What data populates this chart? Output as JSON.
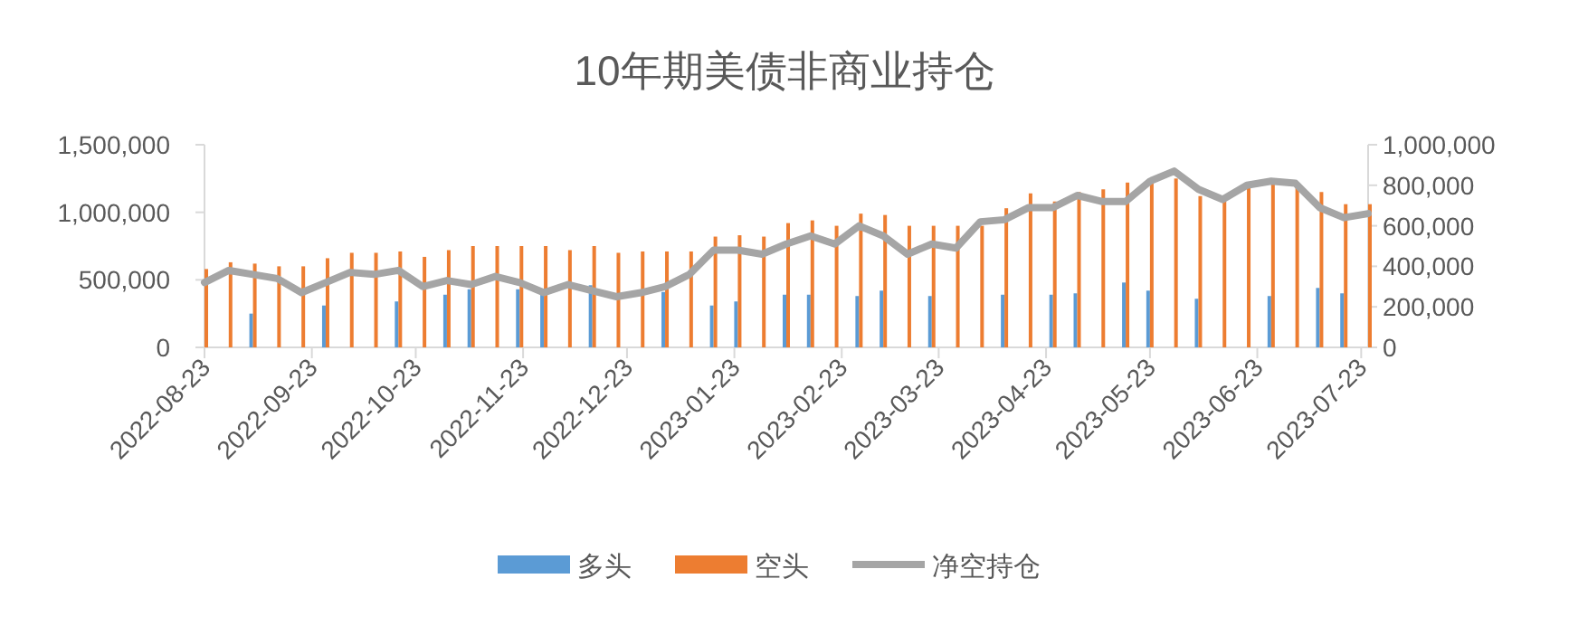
{
  "chart_data": {
    "type": "bar",
    "title": "10年期美债非商业持仓",
    "x": [
      "2022-08-23",
      "2022-08-30",
      "2022-09-06",
      "2022-09-13",
      "2022-09-20",
      "2022-09-27",
      "2022-10-04",
      "2022-10-11",
      "2022-10-18",
      "2022-10-25",
      "2022-11-01",
      "2022-11-08",
      "2022-11-15",
      "2022-11-22",
      "2022-11-29",
      "2022-12-06",
      "2022-12-13",
      "2022-12-20",
      "2022-12-27",
      "2023-01-03",
      "2023-01-10",
      "2023-01-17",
      "2023-01-24",
      "2023-01-31",
      "2023-02-07",
      "2023-02-14",
      "2023-02-21",
      "2023-02-28",
      "2023-03-07",
      "2023-03-14",
      "2023-03-21",
      "2023-03-28",
      "2023-04-04",
      "2023-04-11",
      "2023-04-18",
      "2023-04-25",
      "2023-05-02",
      "2023-05-09",
      "2023-05-16",
      "2023-05-23",
      "2023-05-30",
      "2023-06-06",
      "2023-06-13",
      "2023-06-20",
      "2023-06-27",
      "2023-07-04",
      "2023-07-11",
      "2023-07-18",
      "2023-07-25"
    ],
    "series": [
      {
        "name": "多头",
        "color": "#5b9bd5",
        "values": [
          null,
          null,
          250000,
          null,
          null,
          310000,
          null,
          null,
          340000,
          null,
          390000,
          430000,
          null,
          430000,
          430000,
          null,
          460000,
          null,
          null,
          410000,
          null,
          310000,
          340000,
          null,
          390000,
          390000,
          null,
          380000,
          420000,
          null,
          380000,
          null,
          null,
          390000,
          null,
          390000,
          400000,
          null,
          480000,
          420000,
          null,
          360000,
          null,
          null,
          380000,
          null,
          440000,
          400000,
          null
        ]
      },
      {
        "name": "空头",
        "color": "#ed7d31",
        "values": [
          580000,
          630000,
          620000,
          600000,
          600000,
          660000,
          700000,
          700000,
          710000,
          670000,
          720000,
          750000,
          750000,
          750000,
          750000,
          720000,
          750000,
          700000,
          710000,
          710000,
          710000,
          820000,
          830000,
          820000,
          920000,
          940000,
          900000,
          990000,
          980000,
          900000,
          900000,
          900000,
          900000,
          1030000,
          1140000,
          1080000,
          1150000,
          1170000,
          1220000,
          1220000,
          1250000,
          1120000,
          1080000,
          1190000,
          1220000,
          1190000,
          1150000,
          1060000,
          1060000
        ]
      },
      {
        "name": "净空持仓",
        "type": "line",
        "axis": "y2",
        "color": "#a5a5a5",
        "values": [
          320000,
          380000,
          360000,
          340000,
          270000,
          320000,
          370000,
          360000,
          380000,
          300000,
          330000,
          310000,
          350000,
          320000,
          270000,
          310000,
          280000,
          250000,
          270000,
          300000,
          360000,
          480000,
          480000,
          460000,
          510000,
          550000,
          510000,
          600000,
          550000,
          460000,
          510000,
          490000,
          620000,
          630000,
          690000,
          690000,
          750000,
          720000,
          720000,
          820000,
          870000,
          780000,
          730000,
          800000,
          820000,
          810000,
          690000,
          640000,
          660000
        ]
      }
    ],
    "xlim": [
      "2022-08-23",
      "2023-07-25"
    ],
    "xticks": [
      "2022-08-23",
      "2022-09-23",
      "2022-10-23",
      "2022-11-23",
      "2022-12-23",
      "2023-01-23",
      "2023-02-23",
      "2023-03-23",
      "2023-04-23",
      "2023-05-23",
      "2023-06-23",
      "2023-07-23"
    ],
    "ylim": [
      0,
      1500000
    ],
    "yticks": [
      0,
      {
        "value": 500000,
        "label": "500,000"
      },
      {
        "value": 1000000,
        "label": "1,000,000"
      },
      {
        "value": 1500000,
        "label": "1,500,000"
      }
    ],
    "y2lim": [
      0,
      1000000
    ],
    "y2ticks": [
      0,
      {
        "value": 200000,
        "label": "200,000"
      },
      {
        "value": 400000,
        "label": "400,000"
      },
      {
        "value": 600000,
        "label": "600,000"
      },
      {
        "value": 800000,
        "label": "800,000"
      },
      {
        "value": 1000000,
        "label": "1,000,000"
      }
    ],
    "legend": "bottom",
    "marker": "none",
    "line_style": "solid"
  }
}
